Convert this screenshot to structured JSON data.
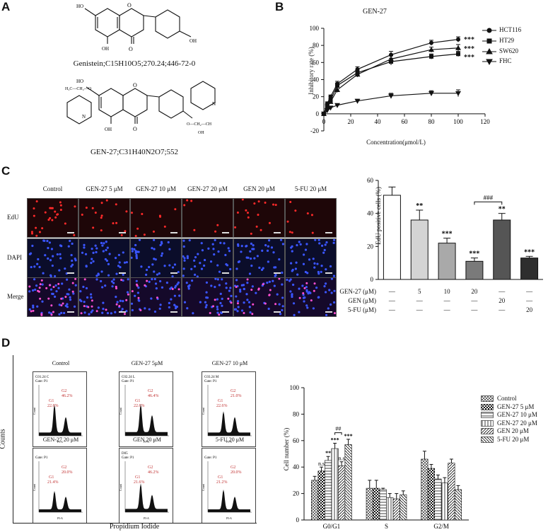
{
  "panels": {
    "a": "A",
    "b": "B",
    "c": "C",
    "d": "D"
  },
  "molecules": {
    "genistein_caption": "Genistein;C15H10O5;270.24;446-72-0",
    "gen27_caption": "GEN-27;C31H40N2O7;552"
  },
  "panel_b": {
    "title": "GEN-27",
    "legend": [
      "HCT116",
      "HT29",
      "SW620",
      "FHC"
    ],
    "sig": [
      "***",
      "***",
      "***"
    ]
  },
  "panel_c": {
    "columns": [
      "Control",
      "GEN-27 5 μM",
      "GEN-27 10 μM",
      "GEN-27 20 μM",
      "GEN 20 μM",
      "5-FU 20 μM"
    ],
    "rows": [
      "EdU",
      "DAPI",
      "Merge"
    ]
  },
  "panel_c_chart": {
    "sig": [
      "",
      "**",
      "***",
      "***",
      "**",
      "***"
    ],
    "compare": "###",
    "table_rows": [
      {
        "label": "GEN-27 (μM)",
        "cells": [
          "—",
          "5",
          "10",
          "20",
          "—",
          "—"
        ]
      },
      {
        "label": "GEN (μM)",
        "cells": [
          "—",
          "—",
          "—",
          "—",
          "20",
          "—"
        ]
      },
      {
        "label": "5-FU (μM)",
        "cells": [
          "—",
          "—",
          "—",
          "—",
          "—",
          "20"
        ]
      }
    ]
  },
  "panel_d": {
    "flow_titles": [
      "Control",
      "GEN-27 5μM",
      "GEN-27 10 μM",
      "GEN-27 20 μM",
      "GEN 20 μM",
      "5-FU 20 μM"
    ],
    "flow_ids": [
      "C01.24 C",
      "C02.24 L",
      "C03.24 M",
      "",
      "D05",
      ""
    ],
    "flow_gate": "Gate: P1",
    "flow_g1": "G1",
    "flow_g2": "G2",
    "flow_g1_pcts": [
      "22.6%",
      "22.6%",
      "22.6%",
      "21.4%",
      "21.6%",
      "21.2%"
    ],
    "flow_g2_pcts": [
      "46.2%",
      "46.4%",
      "21.0%",
      "20.0%",
      "46.2%",
      "20.0%"
    ],
    "flow_count": "Count",
    "flow_pia": "PI-A",
    "ylabel": "Counts",
    "xlabel": "Propidium  Iodide"
  },
  "panel_d_chart": {
    "legend": [
      "Control",
      "GEN-27 5 μM",
      "GEN-27 10 μM",
      "GEN-27 20 μM",
      "GEN 20 μM",
      "5-FU 20 μM"
    ],
    "sig": [
      "",
      "n.s",
      "**",
      "***",
      "n.s",
      "***"
    ],
    "compare": "##"
  },
  "chart_data": [
    {
      "type": "line",
      "title": "GEN-27",
      "xlabel": "Concentration(μmol/L)",
      "ylabel": "Inhibitory rate (%)",
      "xlim": [
        0,
        120
      ],
      "ylim": [
        -20,
        100
      ],
      "xticks": [
        0,
        20,
        40,
        60,
        80,
        100,
        120
      ],
      "yticks": [
        -20,
        0,
        20,
        40,
        60,
        80,
        100
      ],
      "x": [
        0,
        2.5,
        5,
        10,
        25,
        50,
        80,
        100
      ],
      "series": [
        {
          "name": "HCT116",
          "marker": "circle",
          "values": [
            0,
            12,
            20,
            35,
            52,
            69,
            83,
            87
          ]
        },
        {
          "name": "HT29",
          "marker": "square",
          "values": [
            0,
            9,
            16,
            33,
            48,
            61,
            67,
            70
          ]
        },
        {
          "name": "SW620",
          "marker": "triangle-up",
          "values": [
            0,
            8,
            14,
            28,
            46,
            64,
            75,
            77
          ]
        },
        {
          "name": "FHC",
          "marker": "triangle-down",
          "values": [
            0,
            4,
            7,
            10,
            15,
            21,
            24,
            24
          ]
        }
      ],
      "errors": [
        [
          0,
          2,
          2,
          3,
          3,
          4,
          3,
          3
        ],
        [
          0,
          2,
          2,
          3,
          3,
          4,
          3,
          3
        ],
        [
          0,
          2,
          2,
          3,
          3,
          4,
          3,
          4
        ],
        [
          0,
          1,
          1,
          1,
          2,
          3,
          3,
          4
        ]
      ]
    },
    {
      "type": "bar",
      "ylabel": "EdU positive cells (%)",
      "ylim": [
        0,
        60
      ],
      "yticks": [
        0,
        20,
        40,
        60
      ],
      "categories": [
        "Control",
        "GEN-27 5",
        "GEN-27 10",
        "GEN-27 20",
        "GEN 20",
        "5-FU 20"
      ],
      "values": [
        51,
        36,
        22,
        11,
        36,
        13
      ],
      "errors": [
        5,
        6,
        3,
        2,
        4,
        1
      ],
      "colors": [
        "#ffffff",
        "#d4d4d4",
        "#a9a9a9",
        "#7a7a7a",
        "#555555",
        "#2e2e2e"
      ]
    },
    {
      "type": "bar",
      "ylabel": "Cell number (%)",
      "ylim": [
        0,
        100
      ],
      "yticks": [
        0,
        20,
        40,
        60,
        80,
        100
      ],
      "categories": [
        "G0/G1",
        "S",
        "G2/M"
      ],
      "series": [
        {
          "name": "Control",
          "values": [
            30,
            24,
            46
          ],
          "errors": [
            3,
            6,
            6
          ]
        },
        {
          "name": "GEN-27 5 μM",
          "values": [
            37,
            24,
            39
          ],
          "errors": [
            3,
            6,
            3
          ]
        },
        {
          "name": "GEN-27 10 μM",
          "values": [
            45,
            23,
            31
          ],
          "errors": [
            3,
            1,
            3
          ]
        },
        {
          "name": "GEN-27 20 μM",
          "values": [
            54,
            17,
            28
          ],
          "errors": [
            4,
            3,
            4
          ]
        },
        {
          "name": "GEN 20 μM",
          "values": [
            41,
            16,
            43
          ],
          "errors": [
            3,
            4,
            3
          ]
        },
        {
          "name": "5-FU 20 μM",
          "values": [
            57,
            19,
            23
          ],
          "errors": [
            4,
            3,
            3
          ]
        }
      ]
    }
  ]
}
